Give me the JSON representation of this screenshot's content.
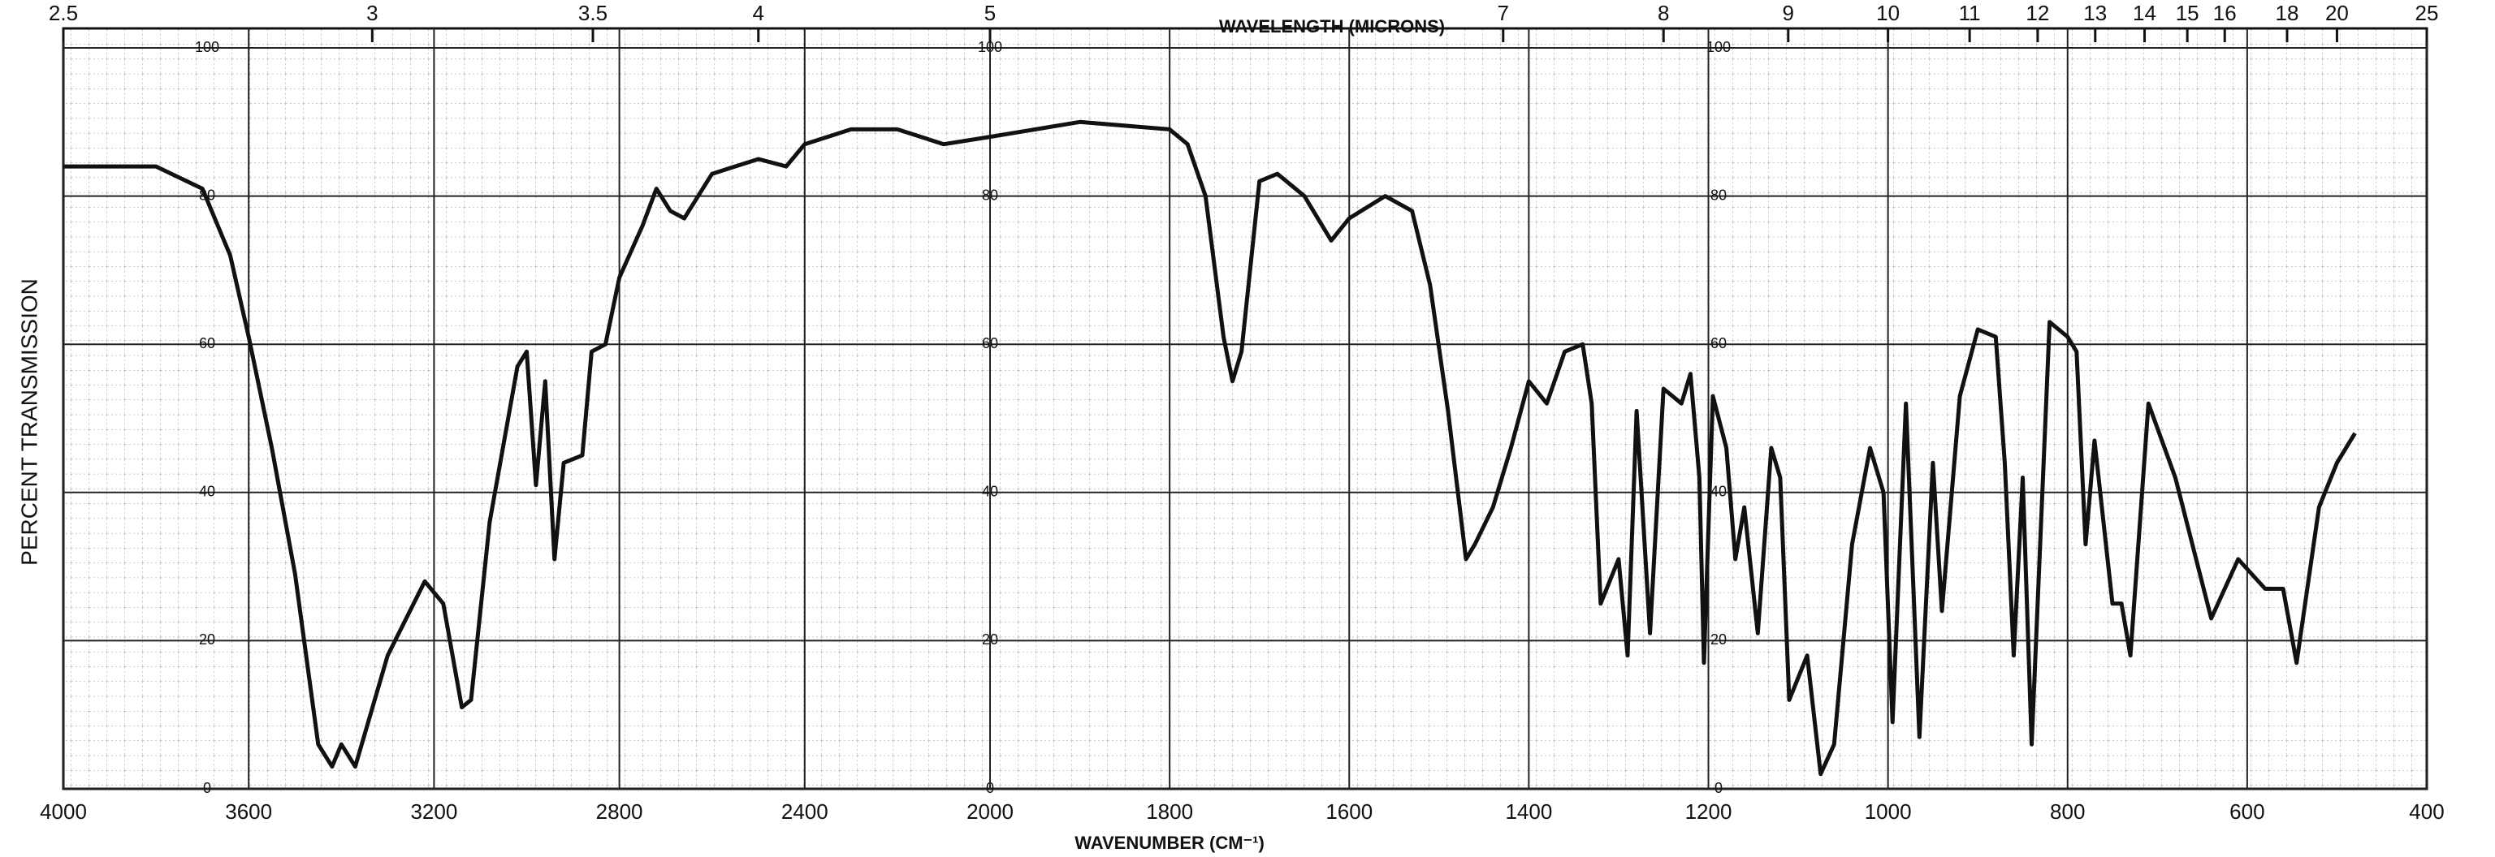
{
  "chart_data": {
    "type": "line",
    "x_title": "WAVELENGTH (MICRONS)",
    "x_label": "WAVENUMBER (CM⁻¹)",
    "y_label": "PERCENT TRANSMISSION",
    "xlim": [
      4000,
      400
    ],
    "x_scale_break": 2000,
    "xticks": [
      4000,
      3600,
      3200,
      2800,
      2400,
      2000,
      1800,
      1600,
      1400,
      1200,
      1000,
      800,
      600,
      400
    ],
    "x2ticks": [
      2.5,
      3,
      3.5,
      4,
      5,
      7,
      8,
      9,
      10,
      11,
      12,
      13,
      14,
      15,
      16,
      18,
      20,
      25
    ],
    "ylim": [
      0,
      100
    ],
    "yticks": [
      0,
      20,
      40,
      60,
      80,
      100
    ],
    "grid": true,
    "color": "#111111",
    "x": [
      4000,
      3800,
      3700,
      3640,
      3600,
      3550,
      3500,
      3450,
      3420,
      3400,
      3370,
      3300,
      3220,
      3180,
      3140,
      3120,
      3080,
      3020,
      3000,
      2980,
      2960,
      2940,
      2920,
      2880,
      2860,
      2830,
      2800,
      2750,
      2720,
      2690,
      2660,
      2600,
      2500,
      2440,
      2400,
      2300,
      2200,
      2100,
      2000,
      1900,
      1800,
      1780,
      1760,
      1740,
      1730,
      1720,
      1700,
      1680,
      1650,
      1620,
      1600,
      1560,
      1530,
      1510,
      1490,
      1470,
      1460,
      1440,
      1420,
      1400,
      1380,
      1360,
      1340,
      1330,
      1320,
      1300,
      1290,
      1280,
      1265,
      1250,
      1230,
      1220,
      1210,
      1205,
      1195,
      1180,
      1170,
      1160,
      1145,
      1130,
      1120,
      1110,
      1090,
      1075,
      1060,
      1040,
      1020,
      1005,
      995,
      980,
      965,
      950,
      940,
      920,
      900,
      880,
      870,
      860,
      850,
      840,
      820,
      800,
      790,
      780,
      770,
      750,
      740,
      730,
      710,
      680,
      640,
      610,
      580,
      560,
      545,
      520,
      500,
      480
    ],
    "values": [
      84,
      84,
      81,
      72,
      61,
      46,
      29,
      6,
      3,
      6,
      3,
      18,
      28,
      25,
      11,
      12,
      36,
      57,
      59,
      41,
      55,
      31,
      44,
      45,
      59,
      60,
      69,
      76,
      81,
      78,
      77,
      83,
      85,
      84,
      87,
      89,
      89,
      87,
      88,
      90,
      89,
      87,
      80,
      61,
      55,
      59,
      82,
      83,
      80,
      74,
      77,
      80,
      78,
      68,
      51,
      31,
      33,
      38,
      46,
      55,
      52,
      59,
      60,
      52,
      25,
      31,
      18,
      51,
      21,
      54,
      52,
      56,
      42,
      17,
      53,
      46,
      31,
      38,
      21,
      46,
      42,
      12,
      18,
      2,
      6,
      33,
      46,
      40,
      9,
      52,
      7,
      44,
      24,
      53,
      62,
      61,
      44,
      18,
      42,
      6,
      63,
      61,
      59,
      33,
      47,
      25,
      25,
      18,
      52,
      42,
      23,
      31,
      27,
      27,
      17,
      38,
      44,
      48
    ]
  }
}
